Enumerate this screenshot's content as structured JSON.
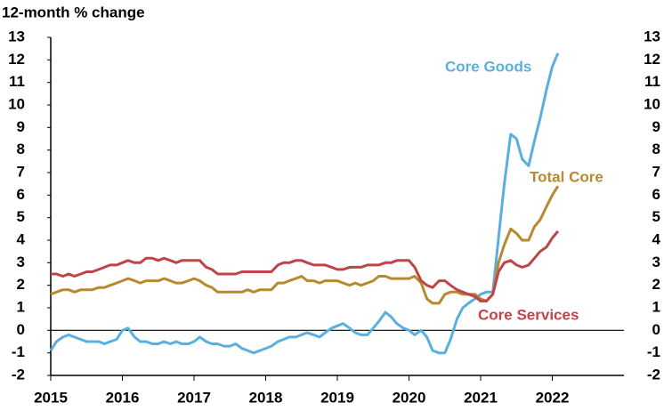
{
  "chart_data": {
    "type": "line",
    "title": "12-month % change",
    "x": [
      2015,
      2015.08,
      2015.17,
      2015.25,
      2015.33,
      2015.42,
      2015.5,
      2015.58,
      2015.67,
      2015.75,
      2015.83,
      2015.92,
      2016,
      2016.08,
      2016.17,
      2016.25,
      2016.33,
      2016.42,
      2016.5,
      2016.58,
      2016.67,
      2016.75,
      2016.83,
      2016.92,
      2017,
      2017.08,
      2017.17,
      2017.25,
      2017.33,
      2017.42,
      2017.5,
      2017.58,
      2017.67,
      2017.75,
      2017.83,
      2017.92,
      2018,
      2018.08,
      2018.17,
      2018.25,
      2018.33,
      2018.42,
      2018.5,
      2018.58,
      2018.67,
      2018.75,
      2018.83,
      2018.92,
      2019,
      2019.08,
      2019.17,
      2019.25,
      2019.33,
      2019.42,
      2019.5,
      2019.58,
      2019.67,
      2019.75,
      2019.83,
      2019.92,
      2020,
      2020.08,
      2020.17,
      2020.25,
      2020.33,
      2020.42,
      2020.5,
      2020.58,
      2020.67,
      2020.75,
      2020.83,
      2020.92,
      2021,
      2021.08,
      2021.17,
      2021.25,
      2021.33,
      2021.42,
      2021.5,
      2021.58,
      2021.67,
      2021.75,
      2021.83,
      2021.92,
      2022,
      2022.08
    ],
    "series": [
      {
        "name": "Core Goods",
        "color": "#5aafe0",
        "values": [
          -0.9,
          -0.5,
          -0.3,
          -0.2,
          -0.3,
          -0.4,
          -0.5,
          -0.5,
          -0.5,
          -0.6,
          -0.5,
          -0.4,
          0.0,
          0.1,
          -0.3,
          -0.5,
          -0.5,
          -0.6,
          -0.6,
          -0.5,
          -0.6,
          -0.5,
          -0.6,
          -0.6,
          -0.5,
          -0.3,
          -0.5,
          -0.6,
          -0.6,
          -0.7,
          -0.7,
          -0.6,
          -0.8,
          -0.9,
          -1.0,
          -0.9,
          -0.8,
          -0.7,
          -0.5,
          -0.4,
          -0.3,
          -0.3,
          -0.2,
          -0.1,
          -0.2,
          -0.3,
          -0.1,
          0.1,
          0.2,
          0.3,
          0.1,
          -0.1,
          -0.2,
          -0.2,
          0.1,
          0.4,
          0.8,
          0.6,
          0.3,
          0.1,
          0.0,
          -0.2,
          0.0,
          -0.3,
          -0.9,
          -1.0,
          -1.0,
          -0.4,
          0.5,
          1.0,
          1.2,
          1.4,
          1.6,
          1.7,
          1.7,
          4.1,
          6.5,
          8.7,
          8.5,
          7.6,
          7.3,
          8.4,
          9.4,
          10.7,
          11.7,
          12.3
        ]
      },
      {
        "name": "Total Core",
        "color": "#b8892f",
        "values": [
          1.6,
          1.7,
          1.8,
          1.8,
          1.7,
          1.8,
          1.8,
          1.8,
          1.9,
          1.9,
          2.0,
          2.1,
          2.2,
          2.3,
          2.2,
          2.1,
          2.2,
          2.2,
          2.2,
          2.3,
          2.2,
          2.1,
          2.1,
          2.2,
          2.3,
          2.2,
          2.0,
          1.9,
          1.7,
          1.7,
          1.7,
          1.7,
          1.7,
          1.8,
          1.7,
          1.8,
          1.8,
          1.8,
          2.1,
          2.1,
          2.2,
          2.3,
          2.4,
          2.2,
          2.2,
          2.1,
          2.2,
          2.2,
          2.2,
          2.1,
          2.0,
          2.1,
          2.0,
          2.1,
          2.2,
          2.4,
          2.4,
          2.3,
          2.3,
          2.3,
          2.3,
          2.4,
          2.1,
          1.4,
          1.2,
          1.2,
          1.6,
          1.7,
          1.7,
          1.6,
          1.6,
          1.6,
          1.4,
          1.3,
          1.6,
          3.0,
          3.8,
          4.5,
          4.3,
          4.0,
          4.0,
          4.6,
          4.9,
          5.5,
          6.0,
          6.4
        ]
      },
      {
        "name": "Core Services",
        "color": "#c0434a",
        "values": [
          2.5,
          2.5,
          2.4,
          2.5,
          2.4,
          2.5,
          2.6,
          2.6,
          2.7,
          2.8,
          2.9,
          2.9,
          3.0,
          3.1,
          3.0,
          3.0,
          3.2,
          3.2,
          3.1,
          3.2,
          3.1,
          3.0,
          3.1,
          3.1,
          3.1,
          3.1,
          2.8,
          2.7,
          2.5,
          2.5,
          2.5,
          2.5,
          2.6,
          2.6,
          2.6,
          2.6,
          2.6,
          2.6,
          2.9,
          3.0,
          3.0,
          3.1,
          3.1,
          3.0,
          2.9,
          2.9,
          2.9,
          2.8,
          2.7,
          2.7,
          2.8,
          2.8,
          2.8,
          2.9,
          2.9,
          2.9,
          3.0,
          3.0,
          3.1,
          3.1,
          3.1,
          2.8,
          2.2,
          2.0,
          1.9,
          2.2,
          2.2,
          2.0,
          1.8,
          1.7,
          1.6,
          1.5,
          1.3,
          1.3,
          1.6,
          2.6,
          3.0,
          3.1,
          2.9,
          2.8,
          2.9,
          3.2,
          3.5,
          3.7,
          4.1,
          4.4
        ]
      }
    ],
    "xlim": [
      2015,
      2023
    ],
    "xticks": [
      2015,
      2016,
      2017,
      2018,
      2019,
      2020,
      2021,
      2022
    ],
    "ylim": [
      -2,
      13
    ],
    "yticks": [
      -2,
      -1,
      0,
      1,
      2,
      3,
      4,
      5,
      6,
      7,
      8,
      9,
      10,
      11,
      12,
      13
    ]
  }
}
